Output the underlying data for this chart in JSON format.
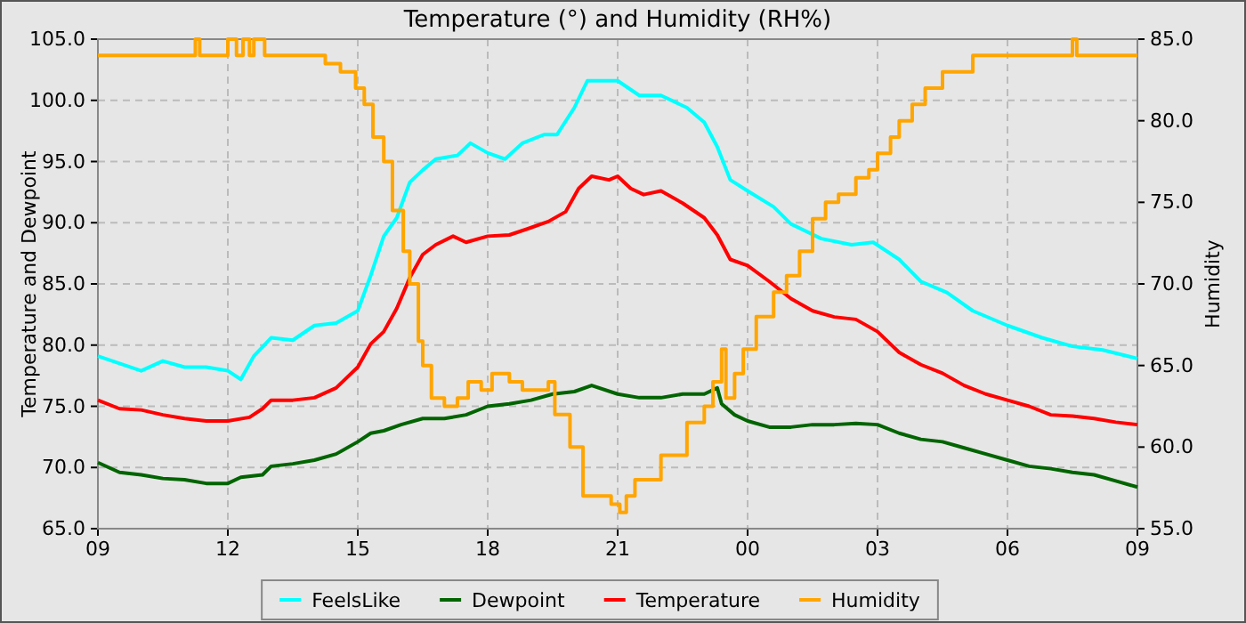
{
  "chart_data": {
    "type": "line",
    "title": "Temperature (°) and Humidity (RH%)",
    "ylabel": "Temperature and Dewpoint",
    "y2label": "Humidity",
    "xlim": [
      9,
      33
    ],
    "xticks": [
      {
        "value": 9,
        "label": "09"
      },
      {
        "value": 12,
        "label": "12"
      },
      {
        "value": 15,
        "label": "15"
      },
      {
        "value": 18,
        "label": "18"
      },
      {
        "value": 21,
        "label": "21"
      },
      {
        "value": 24,
        "label": "00"
      },
      {
        "value": 27,
        "label": "03"
      },
      {
        "value": 30,
        "label": "06"
      },
      {
        "value": 33,
        "label": "09"
      }
    ],
    "ylim": [
      65,
      105
    ],
    "yticks": [
      {
        "value": 65,
        "label": "65.0"
      },
      {
        "value": 70,
        "label": "70.0"
      },
      {
        "value": 75,
        "label": "75.0"
      },
      {
        "value": 80,
        "label": "80.0"
      },
      {
        "value": 85,
        "label": "85.0"
      },
      {
        "value": 90,
        "label": "90.0"
      },
      {
        "value": 95,
        "label": "95.0"
      },
      {
        "value": 100,
        "label": "100.0"
      },
      {
        "value": 105,
        "label": "105.0"
      }
    ],
    "y2lim": [
      55,
      85
    ],
    "y2ticks": [
      {
        "value": 55,
        "label": "55.0"
      },
      {
        "value": 60,
        "label": "60.0"
      },
      {
        "value": 65,
        "label": "65.0"
      },
      {
        "value": 70,
        "label": "70.0"
      },
      {
        "value": 75,
        "label": "75.0"
      },
      {
        "value": 80,
        "label": "80.0"
      },
      {
        "value": 85,
        "label": "85.0"
      }
    ],
    "grid": true,
    "legend": "bottom",
    "marker": "none",
    "line_style": "solid",
    "series": [
      {
        "name": "FeelsLike",
        "color": "#00ffff",
        "x": [
          9,
          10,
          10.5,
          11,
          11.5,
          12,
          12.3,
          12.6,
          13,
          13.5,
          14,
          14.5,
          15,
          15.3,
          15.6,
          15.9,
          16.2,
          16.5,
          16.8,
          17.3,
          17.6,
          18,
          18.4,
          18.8,
          19.3,
          19.6,
          20,
          20.3,
          20.7,
          21,
          21.5,
          22,
          22.6,
          23,
          23.3,
          23.6,
          24,
          24.6,
          25,
          25.7,
          26.4,
          26.9,
          27.5,
          28,
          28.6,
          29.2,
          30,
          30.8,
          31.5,
          32.2,
          33
        ],
        "values": [
          79.1,
          77.9,
          78.7,
          78.2,
          78.2,
          77.9,
          77.2,
          79.1,
          80.6,
          80.4,
          81.6,
          81.8,
          82.8,
          85.7,
          88.9,
          90.4,
          93.3,
          94.3,
          95.2,
          95.5,
          96.5,
          95.7,
          95.2,
          96.5,
          97.2,
          97.2,
          99.4,
          101.6,
          101.6,
          101.6,
          100.4,
          100.4,
          99.4,
          98.2,
          96.2,
          93.5,
          92.6,
          91.3,
          89.9,
          88.7,
          88.2,
          88.4,
          87,
          85.2,
          84.3,
          82.8,
          81.6,
          80.6,
          79.9,
          79.6,
          78.9
        ]
      },
      {
        "name": "Dewpoint",
        "color": "#006400",
        "x": [
          9,
          9.5,
          10,
          10.5,
          11,
          11.5,
          12,
          12.3,
          12.8,
          13,
          13.5,
          14,
          14.5,
          15,
          15.3,
          15.6,
          16,
          16.5,
          17,
          17.5,
          18,
          18.5,
          19,
          19.5,
          20,
          20.4,
          21,
          21.5,
          22,
          22.5,
          23,
          23.3,
          23.4,
          23.7,
          24,
          24.5,
          25,
          25.5,
          26,
          26.5,
          27,
          27.5,
          28,
          28.5,
          29,
          29.5,
          30,
          30.5,
          31,
          31.5,
          32,
          32.5,
          33
        ],
        "values": [
          70.4,
          69.6,
          69.4,
          69.1,
          69,
          68.7,
          68.7,
          69.2,
          69.4,
          70.1,
          70.3,
          70.6,
          71.1,
          72.1,
          72.8,
          73,
          73.5,
          74,
          74,
          74.3,
          75,
          75.2,
          75.5,
          76,
          76.2,
          76.7,
          76,
          75.7,
          75.7,
          76,
          76,
          76.5,
          75.2,
          74.3,
          73.8,
          73.3,
          73.3,
          73.5,
          73.5,
          73.6,
          73.5,
          72.8,
          72.3,
          72.1,
          71.6,
          71.1,
          70.6,
          70.1,
          69.9,
          69.6,
          69.4,
          68.9,
          68.4
        ]
      },
      {
        "name": "Temperature",
        "color": "#ff0000",
        "x": [
          9,
          9.5,
          10,
          10.5,
          11,
          11.5,
          12,
          12.5,
          12.8,
          13,
          13.5,
          14,
          14.5,
          15,
          15.3,
          15.6,
          15.9,
          16.2,
          16.5,
          16.8,
          17.2,
          17.5,
          18,
          18.5,
          19,
          19.4,
          19.8,
          20.1,
          20.4,
          20.8,
          21,
          21.3,
          21.6,
          22,
          22.5,
          23,
          23.3,
          23.6,
          24,
          24.5,
          25,
          25.5,
          26,
          26.5,
          27,
          27.5,
          28,
          28.5,
          29,
          29.5,
          30,
          30.5,
          31,
          31.5,
          32,
          32.5,
          33
        ],
        "values": [
          75.5,
          74.8,
          74.7,
          74.3,
          74,
          73.8,
          73.8,
          74.1,
          74.8,
          75.5,
          75.5,
          75.7,
          76.5,
          78.2,
          80.1,
          81.1,
          83,
          85.5,
          87.4,
          88.2,
          88.9,
          88.4,
          88.9,
          89,
          89.6,
          90.1,
          90.9,
          92.8,
          93.8,
          93.5,
          93.8,
          92.8,
          92.3,
          92.6,
          91.6,
          90.4,
          89,
          87,
          86.5,
          85.2,
          83.8,
          82.8,
          82.3,
          82.1,
          81.1,
          79.4,
          78.4,
          77.7,
          76.7,
          76,
          75.5,
          75,
          74.3,
          74.2,
          74,
          73.7,
          73.5
        ]
      },
      {
        "name": "Humidity",
        "color": "#ffa500",
        "type": "step",
        "axis": "y2",
        "x": [
          9,
          11.25,
          11.35,
          12,
          12.2,
          12.35,
          12.5,
          12.6,
          12.85,
          14.25,
          14.6,
          14.95,
          15.15,
          15.35,
          15.6,
          15.8,
          16.05,
          16.2,
          16.4,
          16.5,
          16.7,
          17,
          17.3,
          17.55,
          17.85,
          18.1,
          18.5,
          18.8,
          19.4,
          19.55,
          19.9,
          20.2,
          20.85,
          21.05,
          21.2,
          21.4,
          21.6,
          22,
          22.6,
          23,
          23.2,
          23.4,
          23.5,
          23.7,
          23.9,
          24.2,
          24.6,
          24.9,
          25.2,
          25.5,
          25.8,
          26.1,
          26.5,
          26.8,
          27,
          27.3,
          27.5,
          27.8,
          28.1,
          28.5,
          29.2,
          31.5,
          31.6,
          33
        ],
        "values": [
          84,
          85,
          84,
          85,
          84,
          85,
          84,
          85,
          84,
          83.5,
          83,
          82,
          81,
          79,
          77.5,
          74.5,
          72,
          70,
          66.5,
          65,
          63,
          62.5,
          63,
          64,
          63.5,
          64.5,
          64,
          63.5,
          64,
          62,
          60,
          57,
          56.5,
          56,
          57,
          58,
          58,
          59.5,
          61.5,
          62.5,
          64,
          66,
          63,
          64.5,
          66,
          68,
          69.5,
          70.5,
          72,
          74,
          75,
          75.5,
          76.5,
          77,
          78,
          79,
          80,
          81,
          82,
          83,
          84,
          85,
          84,
          84
        ]
      }
    ]
  }
}
